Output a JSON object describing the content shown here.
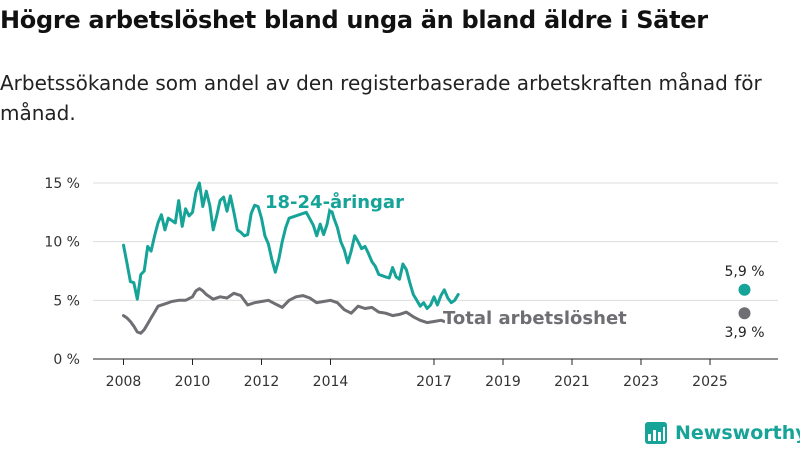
{
  "title": "Högre arbetslöshet bland unga än bland äldre i Säter",
  "subtitle": "Arbetssökande som andel av den registerbaserade arbetskraften månad för månad.",
  "brand": {
    "name": "Newsworthy",
    "color": "#16a398"
  },
  "colors": {
    "youth": "#16a398",
    "total": "#6e6e73",
    "grid": "#dddddd",
    "axis": "#222222"
  },
  "chart_data": {
    "type": "line",
    "title": "Högre arbetslöshet bland unga än bland äldre i Säter",
    "xlabel": "",
    "ylabel": "",
    "xlim": [
      2008,
      2026.5
    ],
    "ylim": [
      0,
      15
    ],
    "grid": true,
    "y_ticks": [
      0,
      5,
      10,
      15
    ],
    "y_tick_labels": [
      "0 %",
      "5 %",
      "10 %",
      "15 %"
    ],
    "x_ticks": [
      2008,
      2010,
      2012,
      2014,
      2017,
      2019,
      2021,
      2023,
      2025
    ],
    "x_tick_labels": [
      "2008",
      "2010",
      "2012",
      "2014",
      "2017",
      "2019",
      "2021",
      "2023",
      "2025"
    ],
    "series": [
      {
        "name": "18-24-åringar",
        "label": "18-24-åringar",
        "end_label": "5,9 %",
        "points": [
          [
            2008.0,
            9.7
          ],
          [
            2008.1,
            8.2
          ],
          [
            2008.2,
            6.6
          ],
          [
            2008.3,
            6.5
          ],
          [
            2008.4,
            5.1
          ],
          [
            2008.5,
            7.2
          ],
          [
            2008.6,
            7.5
          ],
          [
            2008.7,
            9.6
          ],
          [
            2008.8,
            9.2
          ],
          [
            2008.9,
            10.5
          ],
          [
            2009.0,
            11.6
          ],
          [
            2009.1,
            12.3
          ],
          [
            2009.2,
            11.0
          ],
          [
            2009.3,
            12.0
          ],
          [
            2009.4,
            11.8
          ],
          [
            2009.5,
            11.6
          ],
          [
            2009.6,
            13.5
          ],
          [
            2009.7,
            11.3
          ],
          [
            2009.8,
            12.8
          ],
          [
            2009.9,
            12.2
          ],
          [
            2010.0,
            12.5
          ],
          [
            2010.1,
            14.2
          ],
          [
            2010.2,
            15.0
          ],
          [
            2010.3,
            13.0
          ],
          [
            2010.4,
            14.3
          ],
          [
            2010.5,
            13.1
          ],
          [
            2010.6,
            11.0
          ],
          [
            2010.7,
            12.2
          ],
          [
            2010.8,
            13.5
          ],
          [
            2010.9,
            13.8
          ],
          [
            2011.0,
            12.6
          ],
          [
            2011.1,
            13.9
          ],
          [
            2011.2,
            12.5
          ],
          [
            2011.3,
            11.0
          ],
          [
            2011.4,
            10.8
          ],
          [
            2011.5,
            10.5
          ],
          [
            2011.6,
            10.6
          ],
          [
            2011.7,
            12.4
          ],
          [
            2011.8,
            13.1
          ],
          [
            2011.9,
            13.0
          ],
          [
            2012.0,
            12.0
          ],
          [
            2012.1,
            10.5
          ],
          [
            2012.2,
            9.8
          ],
          [
            2012.3,
            8.5
          ],
          [
            2012.4,
            7.4
          ],
          [
            2012.5,
            8.5
          ],
          [
            2012.6,
            10.0
          ],
          [
            2012.7,
            11.2
          ],
          [
            2012.8,
            12.0
          ],
          [
            2013.3,
            12.5
          ],
          [
            2013.5,
            11.4
          ],
          [
            2013.6,
            10.5
          ],
          [
            2013.7,
            11.5
          ],
          [
            2013.8,
            10.6
          ],
          [
            2013.9,
            11.5
          ],
          [
            2014.0,
            13.0
          ],
          [
            2014.1,
            12.0
          ],
          [
            2014.2,
            11.2
          ],
          [
            2014.3,
            10.0
          ],
          [
            2014.4,
            9.3
          ],
          [
            2014.5,
            8.2
          ],
          [
            2014.6,
            9.2
          ],
          [
            2014.7,
            10.5
          ],
          [
            2014.8,
            10.0
          ],
          [
            2014.9,
            9.4
          ],
          [
            2015.0,
            9.6
          ],
          [
            2015.1,
            9.0
          ],
          [
            2015.2,
            8.3
          ],
          [
            2015.3,
            7.9
          ],
          [
            2015.4,
            7.2
          ],
          [
            2015.5,
            7.1
          ],
          [
            2015.6,
            7.0
          ],
          [
            2015.7,
            6.9
          ],
          [
            2015.8,
            7.8
          ],
          [
            2015.9,
            7.0
          ],
          [
            2016.0,
            6.8
          ],
          [
            2016.1,
            8.1
          ],
          [
            2016.2,
            7.6
          ],
          [
            2016.3,
            6.5
          ],
          [
            2016.4,
            5.5
          ],
          [
            2016.5,
            5.0
          ],
          [
            2016.6,
            4.5
          ],
          [
            2016.7,
            4.8
          ],
          [
            2016.8,
            4.3
          ],
          [
            2016.9,
            4.6
          ],
          [
            2017.0,
            5.3
          ],
          [
            2017.1,
            4.6
          ],
          [
            2017.2,
            5.4
          ],
          [
            2017.3,
            5.9
          ],
          [
            2017.4,
            5.2
          ],
          [
            2017.5,
            4.8
          ],
          [
            2017.6,
            5.0
          ],
          [
            2017.7,
            5.5
          ]
        ]
      },
      {
        "name": "Total arbetslöshet",
        "label": "Total arbetslöshet",
        "end_label": "3,9 %",
        "points": [
          [
            2008.0,
            3.7
          ],
          [
            2008.1,
            3.5
          ],
          [
            2008.2,
            3.2
          ],
          [
            2008.3,
            2.8
          ],
          [
            2008.4,
            2.3
          ],
          [
            2008.5,
            2.2
          ],
          [
            2008.6,
            2.5
          ],
          [
            2008.7,
            3.0
          ],
          [
            2008.8,
            3.5
          ],
          [
            2008.9,
            4.0
          ],
          [
            2009.0,
            4.5
          ],
          [
            2009.2,
            4.7
          ],
          [
            2009.4,
            4.9
          ],
          [
            2009.6,
            5.0
          ],
          [
            2009.8,
            5.0
          ],
          [
            2010.0,
            5.3
          ],
          [
            2010.1,
            5.8
          ],
          [
            2010.2,
            6.0
          ],
          [
            2010.3,
            5.8
          ],
          [
            2010.4,
            5.5
          ],
          [
            2010.6,
            5.1
          ],
          [
            2010.8,
            5.3
          ],
          [
            2011.0,
            5.2
          ],
          [
            2011.2,
            5.6
          ],
          [
            2011.4,
            5.4
          ],
          [
            2011.6,
            4.6
          ],
          [
            2011.8,
            4.8
          ],
          [
            2012.0,
            4.9
          ],
          [
            2012.2,
            5.0
          ],
          [
            2012.4,
            4.7
          ],
          [
            2012.6,
            4.4
          ],
          [
            2012.8,
            5.0
          ],
          [
            2013.0,
            5.3
          ],
          [
            2013.2,
            5.4
          ],
          [
            2013.4,
            5.2
          ],
          [
            2013.6,
            4.8
          ],
          [
            2013.8,
            4.9
          ],
          [
            2014.0,
            5.0
          ],
          [
            2014.2,
            4.8
          ],
          [
            2014.4,
            4.2
          ],
          [
            2014.6,
            3.9
          ],
          [
            2014.8,
            4.5
          ],
          [
            2015.0,
            4.3
          ],
          [
            2015.2,
            4.4
          ],
          [
            2015.4,
            4.0
          ],
          [
            2015.6,
            3.9
          ],
          [
            2015.8,
            3.7
          ],
          [
            2016.0,
            3.8
          ],
          [
            2016.2,
            4.0
          ],
          [
            2016.4,
            3.6
          ],
          [
            2016.6,
            3.3
          ],
          [
            2016.8,
            3.1
          ],
          [
            2017.0,
            3.2
          ],
          [
            2017.2,
            3.3
          ],
          [
            2017.4,
            3.1
          ],
          [
            2017.6,
            3.4
          ]
        ]
      }
    ]
  }
}
